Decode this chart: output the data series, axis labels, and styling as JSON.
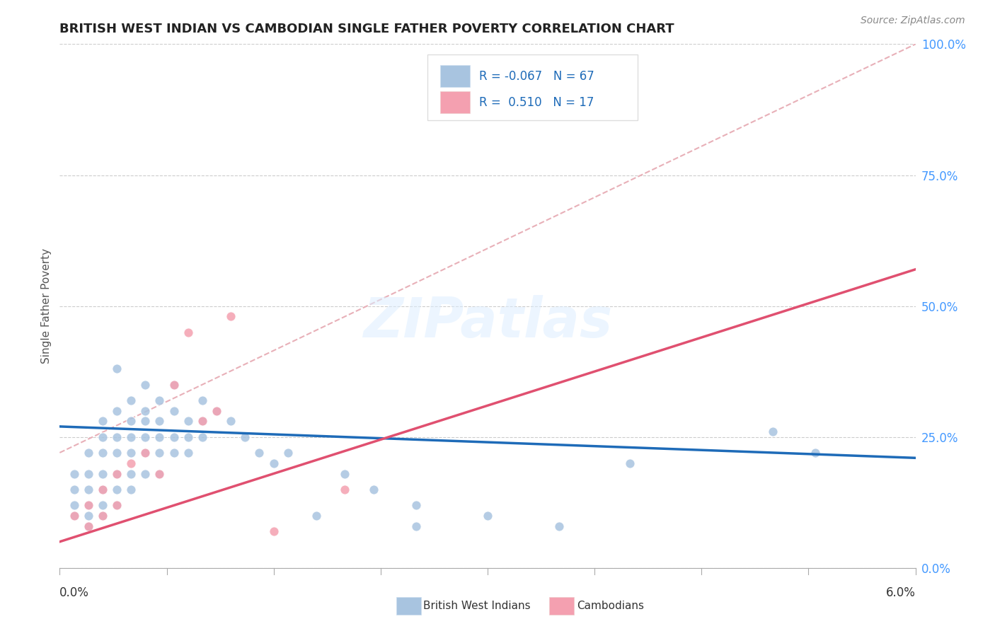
{
  "title": "BRITISH WEST INDIAN VS CAMBODIAN SINGLE FATHER POVERTY CORRELATION CHART",
  "source": "Source: ZipAtlas.com",
  "ylabel": "Single Father Poverty",
  "ytick_vals": [
    0.0,
    0.25,
    0.5,
    0.75,
    1.0
  ],
  "ytick_labels": [
    "0.0%",
    "25.0%",
    "50.0%",
    "75.0%",
    "100.0%"
  ],
  "xrange": [
    0.0,
    0.06
  ],
  "yrange": [
    0.0,
    1.0
  ],
  "legend_r_bwi": "-0.067",
  "legend_n_bwi": "67",
  "legend_r_cam": "0.510",
  "legend_n_cam": "17",
  "watermark": "ZIPatlas",
  "bwi_color": "#a8c4e0",
  "cam_color": "#f4a0b0",
  "bwi_line_color": "#1e6bb8",
  "cam_line_color": "#e05070",
  "diagonal_color": "#e8b0b8",
  "bwi_scatter": [
    [
      0.001,
      0.18
    ],
    [
      0.001,
      0.15
    ],
    [
      0.001,
      0.12
    ],
    [
      0.001,
      0.1
    ],
    [
      0.002,
      0.22
    ],
    [
      0.002,
      0.18
    ],
    [
      0.002,
      0.15
    ],
    [
      0.002,
      0.12
    ],
    [
      0.002,
      0.1
    ],
    [
      0.002,
      0.08
    ],
    [
      0.003,
      0.28
    ],
    [
      0.003,
      0.25
    ],
    [
      0.003,
      0.22
    ],
    [
      0.003,
      0.18
    ],
    [
      0.003,
      0.15
    ],
    [
      0.003,
      0.12
    ],
    [
      0.003,
      0.1
    ],
    [
      0.004,
      0.38
    ],
    [
      0.004,
      0.3
    ],
    [
      0.004,
      0.25
    ],
    [
      0.004,
      0.22
    ],
    [
      0.004,
      0.18
    ],
    [
      0.004,
      0.15
    ],
    [
      0.004,
      0.12
    ],
    [
      0.005,
      0.32
    ],
    [
      0.005,
      0.28
    ],
    [
      0.005,
      0.25
    ],
    [
      0.005,
      0.22
    ],
    [
      0.005,
      0.18
    ],
    [
      0.005,
      0.15
    ],
    [
      0.006,
      0.35
    ],
    [
      0.006,
      0.3
    ],
    [
      0.006,
      0.28
    ],
    [
      0.006,
      0.25
    ],
    [
      0.006,
      0.22
    ],
    [
      0.006,
      0.18
    ],
    [
      0.007,
      0.32
    ],
    [
      0.007,
      0.28
    ],
    [
      0.007,
      0.25
    ],
    [
      0.007,
      0.22
    ],
    [
      0.007,
      0.18
    ],
    [
      0.008,
      0.35
    ],
    [
      0.008,
      0.3
    ],
    [
      0.008,
      0.25
    ],
    [
      0.008,
      0.22
    ],
    [
      0.009,
      0.28
    ],
    [
      0.009,
      0.25
    ],
    [
      0.009,
      0.22
    ],
    [
      0.01,
      0.32
    ],
    [
      0.01,
      0.28
    ],
    [
      0.01,
      0.25
    ],
    [
      0.011,
      0.3
    ],
    [
      0.012,
      0.28
    ],
    [
      0.013,
      0.25
    ],
    [
      0.014,
      0.22
    ],
    [
      0.015,
      0.2
    ],
    [
      0.016,
      0.22
    ],
    [
      0.018,
      0.1
    ],
    [
      0.02,
      0.18
    ],
    [
      0.022,
      0.15
    ],
    [
      0.025,
      0.08
    ],
    [
      0.025,
      0.12
    ],
    [
      0.03,
      0.1
    ],
    [
      0.035,
      0.08
    ],
    [
      0.04,
      0.2
    ],
    [
      0.05,
      0.26
    ],
    [
      0.053,
      0.22
    ]
  ],
  "cam_scatter": [
    [
      0.001,
      0.1
    ],
    [
      0.002,
      0.12
    ],
    [
      0.002,
      0.08
    ],
    [
      0.003,
      0.15
    ],
    [
      0.003,
      0.1
    ],
    [
      0.004,
      0.18
    ],
    [
      0.004,
      0.12
    ],
    [
      0.005,
      0.2
    ],
    [
      0.006,
      0.22
    ],
    [
      0.007,
      0.18
    ],
    [
      0.008,
      0.35
    ],
    [
      0.009,
      0.45
    ],
    [
      0.01,
      0.28
    ],
    [
      0.011,
      0.3
    ],
    [
      0.012,
      0.48
    ],
    [
      0.015,
      0.07
    ],
    [
      0.02,
      0.15
    ]
  ],
  "bwi_line_x": [
    0.0,
    0.06
  ],
  "bwi_line_y": [
    0.27,
    0.21
  ],
  "cam_line_x": [
    0.0,
    0.06
  ],
  "cam_line_y": [
    0.05,
    0.57
  ]
}
